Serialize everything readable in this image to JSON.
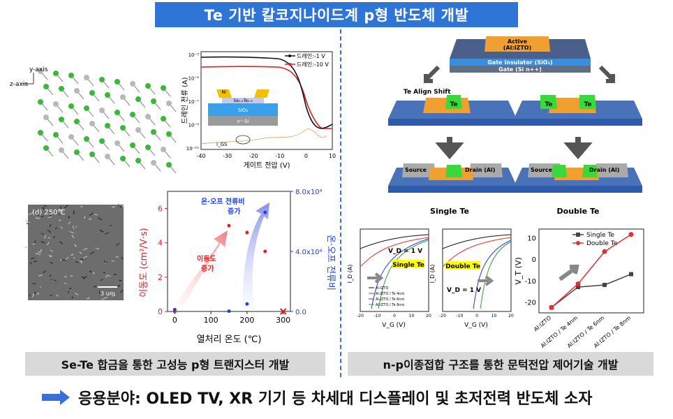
{
  "title": "Te 기반 칼코지나이드계 p형 반도체 개발",
  "left": {
    "crystal": {
      "y_axis": "y-axis",
      "z_axis": "z-axis"
    },
    "transfer": {
      "ylabel": "드레인 전류 (A)",
      "xlabel": "게이트 전압 (V)",
      "x_ticks": [
        "-40",
        "-30",
        "-20",
        "-10",
        "0",
        "10"
      ],
      "y_ticks": [
        "10⁻³",
        "10⁻⁵",
        "10⁻⁷",
        "10⁻⁹",
        "10⁻¹¹"
      ],
      "legend": [
        "드레인:-1 V",
        "드레인:-10 V"
      ],
      "inset": {
        "ni": "Ni",
        "channel": "Se₀.₅Te₀.₅",
        "sio2": "SiO₂",
        "si": "n⁺-Si"
      },
      "igs": "I_GS"
    },
    "sem": {
      "label": "(d) 250℃",
      "scale": "3 um"
    },
    "chart_data": {
      "type": "scatter",
      "xlabel": "열처리 온도 (℃)",
      "ylabel_left": "이동도 (cm²/V·s)",
      "ylabel_right": "온·오프 전류비",
      "x_ticks": [
        "0",
        "100",
        "200",
        "300"
      ],
      "y_left_ticks": [
        "0",
        "2",
        "4",
        "6"
      ],
      "y_right_ticks": [
        "0.0",
        "4.0x10⁴",
        "8.0x10⁴"
      ],
      "xlim": [
        -20,
        320
      ],
      "ylim_left": [
        0,
        7
      ],
      "ylim_right": [
        0,
        80000
      ],
      "series": [
        {
          "name": "이동도",
          "axis": "left",
          "color": "#e02020",
          "points": [
            [
              0,
              0
            ],
            [
              150,
              5.0
            ],
            [
              200,
              4.6
            ],
            [
              250,
              3.5
            ],
            [
              300,
              0
            ]
          ]
        },
        {
          "name": "온·오프 전류비",
          "axis": "right",
          "color": "#2040e0",
          "points": [
            [
              0,
              1200
            ],
            [
              150,
              200
            ],
            [
              200,
              5000
            ],
            [
              250,
              66000
            ]
          ]
        }
      ],
      "annotations": [
        "이동도\n증가",
        "온·오프 전류비\n증가"
      ]
    },
    "caption": "Se-Te 합금을 통한 고성능 p형 트랜지스터 개발"
  },
  "right": {
    "stack": {
      "active": "Active",
      "active2": "(Al:IZTO)",
      "gi": "Gate Insulator (SiO₂)",
      "gate": "Gate (Si n++)"
    },
    "align": "Te Align Shift",
    "te": "Te",
    "source": "Source",
    "drain": "Drain (Al)",
    "single": "Single Te",
    "double": "Double Te",
    "transfer_single": {
      "ylabel": "I_D (A)",
      "xlabel": "V_G (V)",
      "vd": "V_D = 1 V",
      "tag": "Single Te",
      "legend": [
        "Al:IZTO",
        "Al:IZTO / Te 4nm",
        "Al:IZTO / Te 6nm",
        "Al:IZTO / Te 8nm"
      ],
      "x_ticks": [
        "-20",
        "-10",
        "0",
        "10",
        "20"
      ]
    },
    "transfer_double": {
      "ylabel": "I_D (A)",
      "xlabel": "V_G (V)",
      "vd": "V_D = 1 V",
      "tag": "Double Te",
      "x_ticks": [
        "-20",
        "-10",
        "0",
        "10",
        "20"
      ]
    },
    "vt_chart": {
      "type": "line",
      "ylabel": "V_T (V)",
      "categories": [
        "Al:IZTO",
        "Al:IZTO / Te 4nm",
        "Al:IZTO / Te 6nm",
        "Al:IZTO / Te 8nm"
      ],
      "y_ticks": [
        "10",
        "0",
        "-10",
        "-20"
      ],
      "ylim": [
        -25,
        14
      ],
      "series": [
        {
          "name": "Single Te",
          "color": "#444444",
          "values": [
            -22.5,
            -13,
            -12,
            -7
          ]
        },
        {
          "name": "Double Te",
          "color": "#e03030",
          "values": [
            -22.5,
            -11.5,
            3.5,
            11.5
          ]
        }
      ]
    },
    "caption": "n-p이종접합 구조를 통한 문턱전압 제어기술 개발"
  },
  "footer": "응용분야: OLED TV, XR 기기 등 차세대 디스플레이 및 초저전력 반도체 소자",
  "colors": {
    "title_bg": "#2f75d6",
    "caption_bg": "#d9d9d9",
    "arrow": "#3a6fd8"
  }
}
